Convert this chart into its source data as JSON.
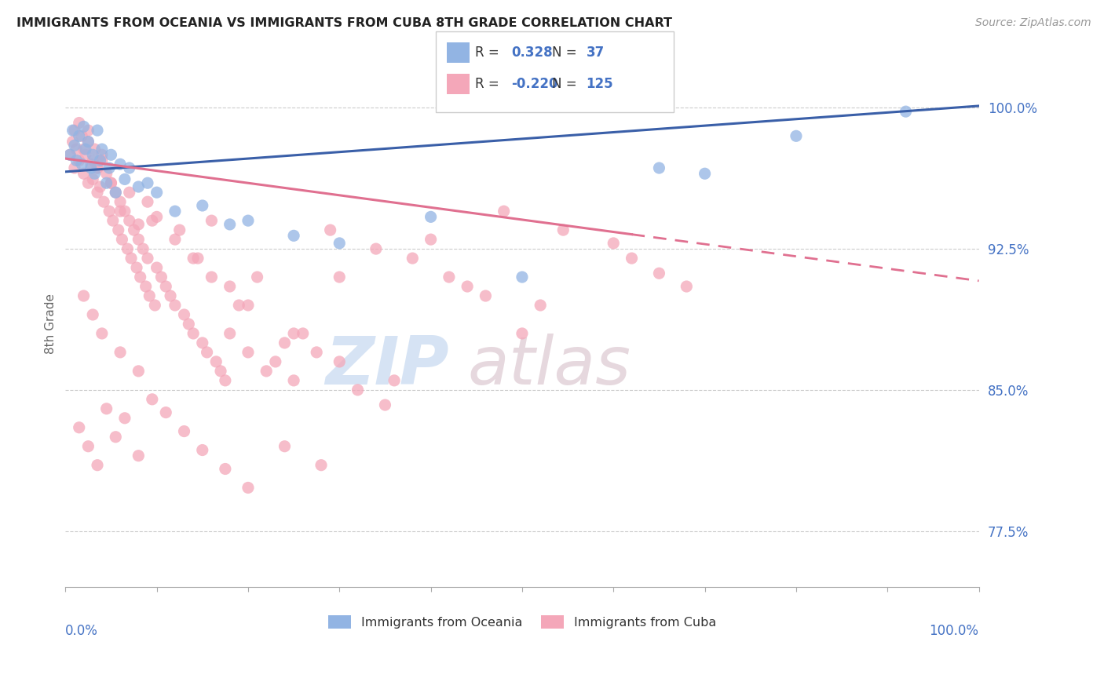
{
  "title": "IMMIGRANTS FROM OCEANIA VS IMMIGRANTS FROM CUBA 8TH GRADE CORRELATION CHART",
  "source": "Source: ZipAtlas.com",
  "ylabel": "8th Grade",
  "yaxis_labels": [
    "77.5%",
    "85.0%",
    "92.5%",
    "100.0%"
  ],
  "yaxis_values": [
    0.775,
    0.85,
    0.925,
    1.0
  ],
  "xlim": [
    0.0,
    1.0
  ],
  "ylim": [
    0.745,
    1.025
  ],
  "legend_R1": "0.328",
  "legend_N1": "37",
  "legend_R2": "-0.220",
  "legend_N2": "125",
  "oceania_color": "#92b4e3",
  "cuba_color": "#f4a7b9",
  "trend_oceania_color": "#3a5fa8",
  "trend_cuba_color": "#e07090",
  "background_color": "#ffffff",
  "oceania_label": "Immigrants from Oceania",
  "cuba_label": "Immigrants from Cuba",
  "trend_oceania_start_y": 0.966,
  "trend_oceania_end_y": 1.001,
  "trend_cuba_start_y": 0.973,
  "trend_cuba_end_y": 0.908,
  "trend_cuba_solid_end_x": 0.62,
  "trend_cuba_dashed_end_x": 1.0,
  "oceania_x": [
    0.005,
    0.008,
    0.01,
    0.012,
    0.015,
    0.018,
    0.02,
    0.022,
    0.025,
    0.028,
    0.03,
    0.032,
    0.035,
    0.038,
    0.04,
    0.045,
    0.048,
    0.05,
    0.055,
    0.06,
    0.065,
    0.07,
    0.08,
    0.09,
    0.1,
    0.12,
    0.15,
    0.18,
    0.2,
    0.25,
    0.3,
    0.4,
    0.5,
    0.65,
    0.7,
    0.8,
    0.92
  ],
  "oceania_y": [
    0.975,
    0.988,
    0.98,
    0.972,
    0.985,
    0.97,
    0.99,
    0.978,
    0.982,
    0.968,
    0.975,
    0.965,
    0.988,
    0.972,
    0.978,
    0.96,
    0.968,
    0.975,
    0.955,
    0.97,
    0.962,
    0.968,
    0.958,
    0.96,
    0.955,
    0.945,
    0.948,
    0.938,
    0.94,
    0.932,
    0.928,
    0.942,
    0.91,
    0.968,
    0.965,
    0.985,
    0.998
  ],
  "cuba_x": [
    0.005,
    0.008,
    0.01,
    0.012,
    0.015,
    0.018,
    0.02,
    0.022,
    0.025,
    0.025,
    0.028,
    0.03,
    0.032,
    0.035,
    0.035,
    0.038,
    0.04,
    0.042,
    0.045,
    0.048,
    0.05,
    0.052,
    0.055,
    0.058,
    0.06,
    0.062,
    0.065,
    0.068,
    0.07,
    0.072,
    0.075,
    0.078,
    0.08,
    0.082,
    0.085,
    0.088,
    0.09,
    0.092,
    0.095,
    0.098,
    0.1,
    0.105,
    0.11,
    0.115,
    0.12,
    0.125,
    0.13,
    0.135,
    0.14,
    0.145,
    0.15,
    0.155,
    0.16,
    0.165,
    0.17,
    0.175,
    0.18,
    0.19,
    0.2,
    0.21,
    0.22,
    0.23,
    0.24,
    0.25,
    0.26,
    0.275,
    0.29,
    0.3,
    0.32,
    0.34,
    0.36,
    0.38,
    0.4,
    0.42,
    0.44,
    0.46,
    0.48,
    0.5,
    0.52,
    0.545,
    0.01,
    0.015,
    0.02,
    0.025,
    0.03,
    0.035,
    0.04,
    0.05,
    0.06,
    0.07,
    0.08,
    0.09,
    0.1,
    0.12,
    0.14,
    0.16,
    0.18,
    0.2,
    0.25,
    0.3,
    0.015,
    0.025,
    0.035,
    0.045,
    0.055,
    0.065,
    0.08,
    0.095,
    0.11,
    0.13,
    0.15,
    0.175,
    0.2,
    0.24,
    0.28,
    0.02,
    0.03,
    0.04,
    0.06,
    0.08,
    0.6,
    0.62,
    0.65,
    0.68,
    0.35
  ],
  "cuba_y": [
    0.975,
    0.982,
    0.968,
    0.978,
    0.972,
    0.985,
    0.965,
    0.975,
    0.988,
    0.96,
    0.97,
    0.962,
    0.978,
    0.955,
    0.968,
    0.958,
    0.972,
    0.95,
    0.965,
    0.945,
    0.96,
    0.94,
    0.955,
    0.935,
    0.95,
    0.93,
    0.945,
    0.925,
    0.94,
    0.92,
    0.935,
    0.915,
    0.93,
    0.91,
    0.925,
    0.905,
    0.92,
    0.9,
    0.94,
    0.895,
    0.915,
    0.91,
    0.905,
    0.9,
    0.895,
    0.935,
    0.89,
    0.885,
    0.88,
    0.92,
    0.875,
    0.87,
    0.94,
    0.865,
    0.86,
    0.855,
    0.88,
    0.895,
    0.87,
    0.91,
    0.86,
    0.865,
    0.875,
    0.855,
    0.88,
    0.87,
    0.935,
    0.865,
    0.85,
    0.925,
    0.855,
    0.92,
    0.93,
    0.91,
    0.905,
    0.9,
    0.945,
    0.88,
    0.895,
    0.935,
    0.988,
    0.992,
    0.978,
    0.982,
    0.972,
    0.968,
    0.975,
    0.96,
    0.945,
    0.955,
    0.938,
    0.95,
    0.942,
    0.93,
    0.92,
    0.91,
    0.905,
    0.895,
    0.88,
    0.91,
    0.83,
    0.82,
    0.81,
    0.84,
    0.825,
    0.835,
    0.815,
    0.845,
    0.838,
    0.828,
    0.818,
    0.808,
    0.798,
    0.82,
    0.81,
    0.9,
    0.89,
    0.88,
    0.87,
    0.86,
    0.928,
    0.92,
    0.912,
    0.905,
    0.842
  ]
}
